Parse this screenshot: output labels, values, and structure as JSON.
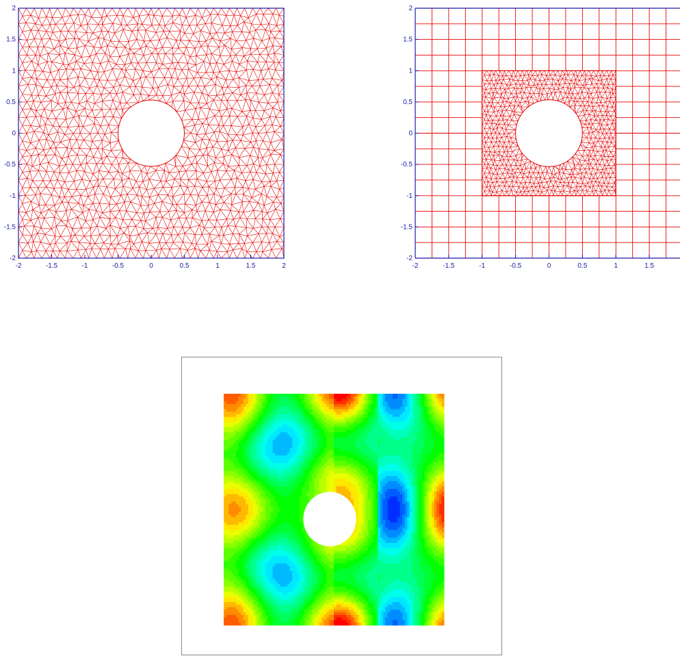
{
  "panels": {
    "left": {
      "title": "",
      "x_ticks": [
        "-2",
        "-1.5",
        "-1",
        "-0.5",
        "0",
        "0.5",
        "1",
        "1.5",
        "2"
      ],
      "y_ticks": [
        "2",
        "1.5",
        "1",
        "0.5",
        "0",
        "-0.5",
        "-1",
        "-1.5",
        "-2"
      ],
      "x_range": [
        -2,
        2
      ],
      "y_range": [
        -2,
        2
      ],
      "hole": {
        "center": [
          0,
          0
        ],
        "radius": 0.5
      },
      "mesh": "unstructured triangular mesh",
      "mesh_color": "#e60000",
      "axis_color": "#1a1aa6"
    },
    "right": {
      "title": "",
      "x_ticks": [
        "-2",
        "-1.5",
        "-1",
        "-0.5",
        "0",
        "0.5",
        "1",
        "1.5"
      ],
      "y_ticks": [
        "2",
        "1.5",
        "1",
        "0.5",
        "0",
        "-0.5",
        "-1",
        "-1.5",
        "-2"
      ],
      "x_range": [
        -2,
        2
      ],
      "y_range": [
        -2,
        2
      ],
      "hole": {
        "center": [
          0,
          0
        ],
        "radius": 0.5
      },
      "inner_region": [
        -1,
        1
      ],
      "mesh": "structured quad grid with refined triangular patch",
      "mesh_color": "#e60000",
      "axis_color": "#1a1aa6"
    },
    "bottom": {
      "title": "",
      "field": "wave field contour",
      "colormap": [
        "#0000ff",
        "#00ffff",
        "#00ff00",
        "#ffff00",
        "#ff0000"
      ]
    }
  }
}
